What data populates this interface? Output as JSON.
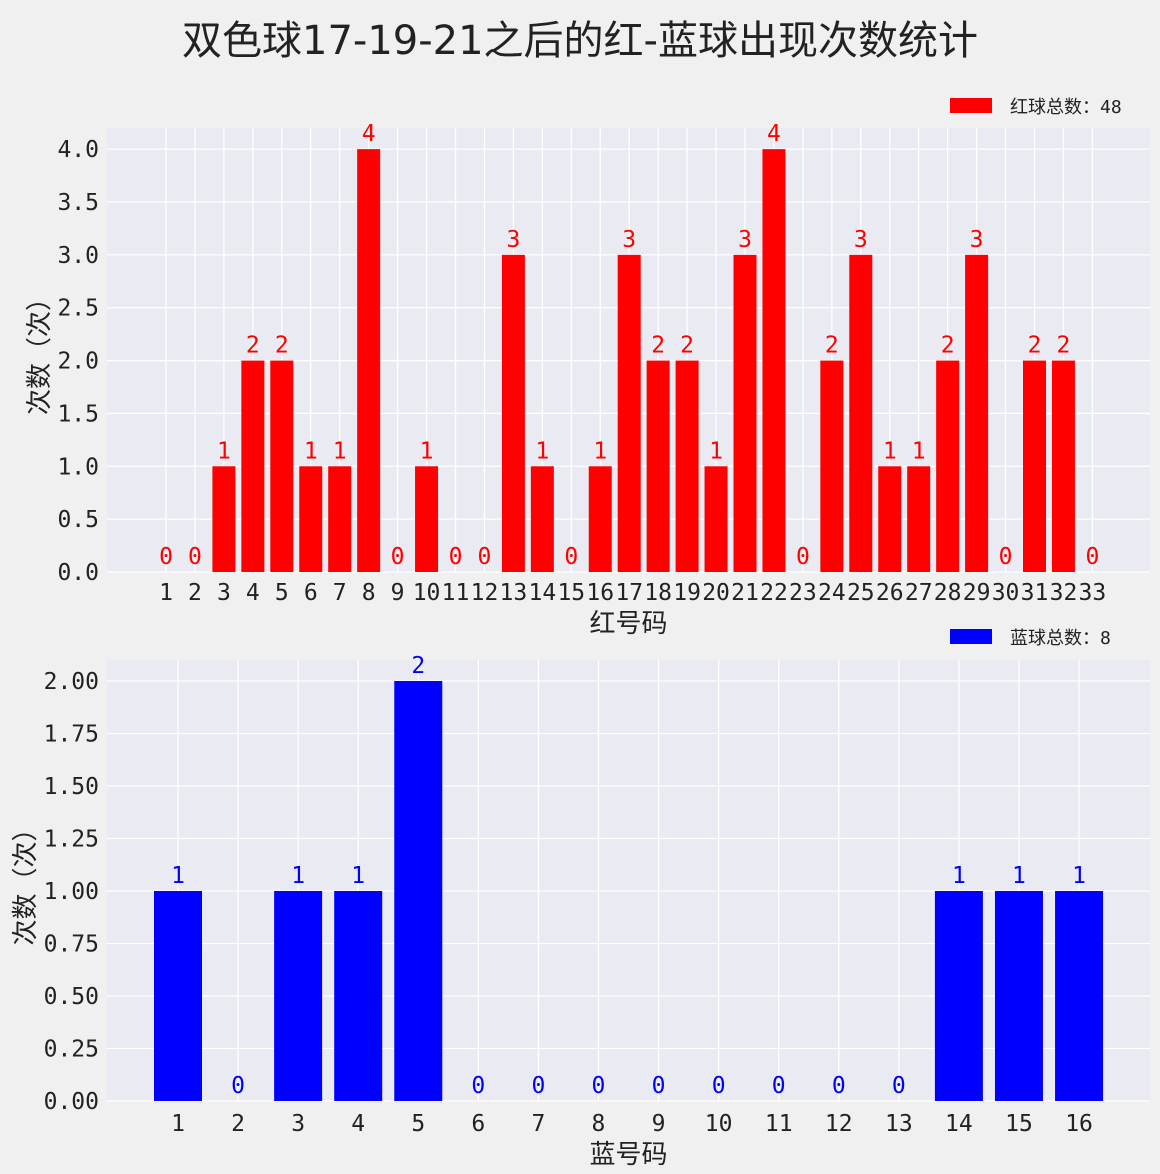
{
  "title": "双色球17-19-21之后的红-蓝球出现次数统计",
  "colors": {
    "figure_bg": "#f0f0f0",
    "axes_bg": "#eaeaf2",
    "grid": "#ffffff",
    "red": "#ff0000",
    "blue": "#0000ff",
    "text": "#222222"
  },
  "chart_data": [
    {
      "type": "bar",
      "title": "",
      "xlabel": "红号码",
      "ylabel": "次数（次）",
      "categories": [
        "1",
        "2",
        "3",
        "4",
        "5",
        "6",
        "7",
        "8",
        "9",
        "10",
        "11",
        "12",
        "13",
        "14",
        "15",
        "16",
        "17",
        "18",
        "19",
        "20",
        "21",
        "22",
        "23",
        "24",
        "25",
        "26",
        "27",
        "28",
        "29",
        "30",
        "31",
        "32",
        "33"
      ],
      "series": [
        {
          "name": "红球总数：48",
          "color": "#ff0000",
          "values": [
            0,
            0,
            1,
            2,
            2,
            1,
            1,
            4,
            0,
            1,
            0,
            0,
            3,
            1,
            0,
            1,
            3,
            2,
            2,
            1,
            3,
            4,
            0,
            2,
            3,
            1,
            1,
            2,
            3,
            0,
            2,
            2,
            0
          ]
        }
      ],
      "ylim": [
        0,
        4.2
      ],
      "yticks": [
        "0.0",
        "0.5",
        "1.0",
        "1.5",
        "2.0",
        "2.5",
        "3.0",
        "3.5",
        "4.0"
      ],
      "grid": true,
      "legend": "top-right",
      "data_labels": true
    },
    {
      "type": "bar",
      "title": "",
      "xlabel": "蓝号码",
      "ylabel": "次数（次）",
      "categories": [
        "1",
        "2",
        "3",
        "4",
        "5",
        "6",
        "7",
        "8",
        "9",
        "10",
        "11",
        "12",
        "13",
        "14",
        "15",
        "16"
      ],
      "series": [
        {
          "name": "蓝球总数：8",
          "color": "#0000ff",
          "values": [
            1,
            0,
            1,
            1,
            2,
            0,
            0,
            0,
            0,
            0,
            0,
            0,
            0,
            1,
            1,
            1
          ]
        }
      ],
      "ylim": [
        0,
        2.1
      ],
      "yticks": [
        "0.00",
        "0.25",
        "0.50",
        "0.75",
        "1.00",
        "1.25",
        "1.50",
        "1.75",
        "2.00"
      ],
      "grid": true,
      "legend": "top-right",
      "data_labels": true
    }
  ]
}
